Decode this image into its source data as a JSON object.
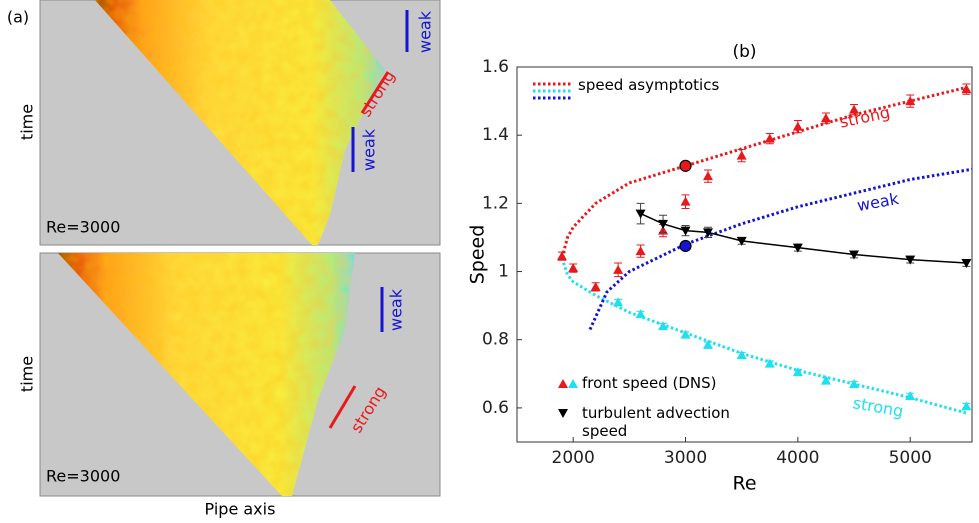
{
  "panel_a": {
    "label": "(a)",
    "time_label_top": "time",
    "time_label_bottom": "time",
    "re_top": "Re=3000",
    "re_bottom": "Re=3000",
    "x_label": "Pipe axis",
    "annotations_top": [
      {
        "text": "weak",
        "color": "#1414d2"
      },
      {
        "text": "strong",
        "color": "#e8191c"
      },
      {
        "text": "weak",
        "color": "#1414d2"
      }
    ],
    "annotations_bottom": [
      {
        "text": "weak",
        "color": "#1414d2"
      },
      {
        "text": "strong",
        "color": "#e8191c"
      }
    ]
  },
  "chart_data": {
    "type": "scatter",
    "title": "(b)",
    "x_label": "Re",
    "y_label": "Speed",
    "xlim": [
      1500,
      5550
    ],
    "ylim": [
      0.5,
      1.6
    ],
    "xticks": [
      2000,
      3000,
      4000,
      5000
    ],
    "yticks": [
      0.6,
      0.8,
      1,
      1.2,
      1.4,
      1.6
    ],
    "series": [
      {
        "color": "#e8191c",
        "line": "dotted",
        "x": [
          1900,
          1950,
          2000,
          2200,
          2500,
          3000,
          3500,
          4000,
          4500,
          5000,
          5500
        ],
        "values": [
          1.04,
          1.1,
          1.13,
          1.2,
          1.26,
          1.31,
          1.36,
          1.41,
          1.46,
          1.5,
          1.54
        ]
      },
      {
        "color": "#1ee0f0",
        "line": "dotted",
        "x": [
          1900,
          1950,
          2000,
          2200,
          2500,
          3000,
          3500,
          4000,
          4500,
          5000,
          5500
        ],
        "values": [
          1.04,
          0.99,
          0.97,
          0.93,
          0.88,
          0.82,
          0.76,
          0.71,
          0.67,
          0.63,
          0.585
        ]
      },
      {
        "color": "#1414d2",
        "line": "dotted",
        "x": [
          2150,
          2300,
          2500,
          3000,
          3500,
          4000,
          4500,
          5000,
          5550
        ],
        "values": [
          0.83,
          0.94,
          1.0,
          1.08,
          1.14,
          1.19,
          1.23,
          1.27,
          1.3
        ]
      },
      {
        "color": "#e8191c",
        "marker": "triangle-up",
        "x": [
          1900,
          2000,
          2200,
          2400,
          2600,
          2800,
          3000,
          3200,
          3500,
          3750,
          4000,
          4250,
          4500,
          5000,
          5500
        ],
        "values": [
          1.045,
          1.01,
          0.955,
          1.005,
          1.06,
          1.12,
          1.205,
          1.28,
          1.34,
          1.39,
          1.425,
          1.45,
          1.475,
          1.5,
          1.535
        ],
        "errors": [
          0.012,
          0.012,
          0.012,
          0.02,
          0.018,
          0.018,
          0.02,
          0.018,
          0.018,
          0.015,
          0.018,
          0.015,
          0.015,
          0.018,
          0.015
        ]
      },
      {
        "color": "#1ee0f0",
        "marker": "triangle-up",
        "x": [
          2400,
          2600,
          2800,
          3000,
          3200,
          3500,
          3750,
          4000,
          4250,
          4500,
          5000,
          5500
        ],
        "values": [
          0.91,
          0.875,
          0.84,
          0.815,
          0.785,
          0.755,
          0.73,
          0.705,
          0.68,
          0.67,
          0.635,
          0.605
        ],
        "errors": [
          0.008,
          0.008,
          0.008,
          0.008,
          0.008,
          0.008,
          0.008,
          0.008,
          0.008,
          0.008,
          0.008,
          0.008
        ]
      },
      {
        "color": "#000000",
        "marker": "triangle-down",
        "line": "solid",
        "x": [
          2600,
          2800,
          3000,
          3200,
          3500,
          4000,
          4500,
          5000,
          5500
        ],
        "values": [
          1.17,
          1.14,
          1.12,
          1.115,
          1.09,
          1.07,
          1.05,
          1.035,
          1.025
        ],
        "errors": [
          0.03,
          0.025,
          0.015,
          0.015,
          0.01,
          0.01,
          0.01,
          0.01,
          0.01
        ]
      },
      {
        "color": "#e8191c",
        "marker": "circle",
        "x": [
          3000
        ],
        "values": [
          1.31
        ]
      },
      {
        "color": "#1414d2",
        "marker": "circle",
        "x": [
          3000
        ],
        "values": [
          1.075
        ]
      }
    ],
    "annotations": [
      {
        "text": "strong",
        "color": "#e8191c"
      },
      {
        "text": "weak",
        "color": "#1414d2"
      },
      {
        "text": "strong",
        "color": "#1ee0f0"
      }
    ],
    "legend": [
      "speed asymptotics",
      "front speed (DNS)",
      "turbulent advection speed"
    ]
  }
}
